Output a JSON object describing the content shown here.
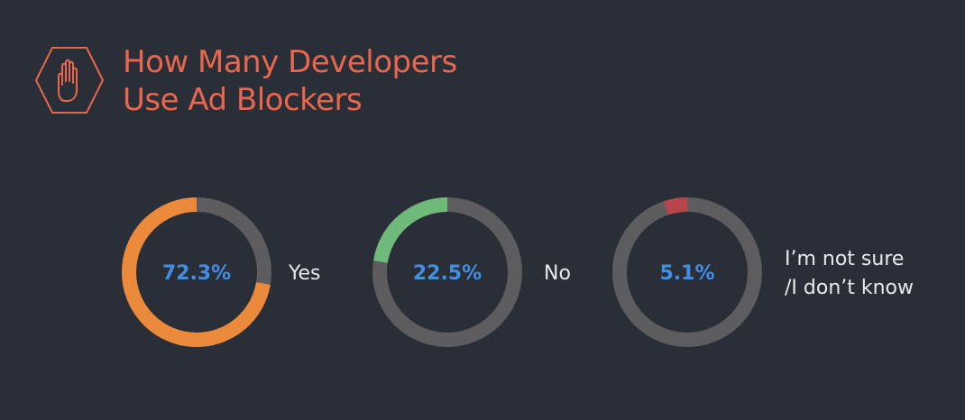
{
  "title_lines": [
    "How Many Developers",
    "Use Ad Blockers"
  ],
  "logo_icon": "stop-hand-hexagon-icon",
  "colors": {
    "background": "#2a2e37",
    "title": "#e8674e",
    "track": "#5d5d5f",
    "value_text": "#3f8fe6",
    "label_text": "#e8e9eb"
  },
  "chart_data": {
    "type": "pie",
    "style": "donut",
    "title": "How Many Developers Use Ad Blockers",
    "series": [
      {
        "name": "Yes",
        "label_lines": [
          "Yes"
        ],
        "value": 72.3,
        "value_label": "72.3%",
        "color": "#ec8a3c"
      },
      {
        "name": "No",
        "label_lines": [
          "No"
        ],
        "value": 22.5,
        "value_label": "22.5%",
        "color": "#6fba7a"
      },
      {
        "name": "I'm not sure /I don't know",
        "label_lines": [
          "I’m not sure",
          "/I don’t know"
        ],
        "value": 5.1,
        "value_label": "5.1%",
        "color": "#b8454a"
      }
    ]
  }
}
